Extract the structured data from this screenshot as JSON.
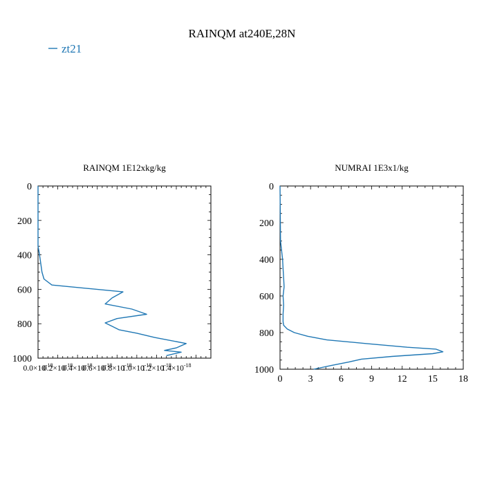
{
  "figure": {
    "title": "RAINQM at240E,28N",
    "legend": [
      {
        "label": "zt21",
        "color": "#1f77b4"
      }
    ]
  },
  "chart_data": [
    {
      "type": "line",
      "title": "RAINQM  1E12xkg/kg",
      "xlim": [
        0.0,
        1.75e-18
      ],
      "ylim": [
        1000,
        0
      ],
      "y_inverted": true,
      "xticks": [
        0.0,
        2e-19,
        4e-19,
        6e-19,
        8e-19,
        1e-18,
        1.2e-18,
        1.4e-18
      ],
      "xtick_labels": [
        "0.0×10^-18",
        "0.2×10^-18",
        "0.4×10^-18",
        "0.6×10^-18",
        "0.8×10^-18",
        "1.0×10^-18",
        "1.2×10^-18",
        "1.4×10^-18"
      ],
      "yticks": [
        0,
        200,
        400,
        600,
        800,
        1000
      ],
      "ytick_labels": [
        "0",
        "200",
        "400",
        "600",
        "800",
        "1000"
      ],
      "series": [
        {
          "name": "zt21",
          "color": "#1f77b4",
          "x": [
            0,
            0,
            1e-20,
            2e-20,
            3e-20,
            4e-20,
            6e-20,
            1.4e-19,
            8.6e-19,
            7.5e-19,
            6.8e-19,
            9.5e-19,
            1.1e-18,
            8e-19,
            6.8e-19,
            7.5e-19,
            8.2e-19,
            1e-18,
            1.18e-18,
            1.5e-18,
            1.4e-18,
            1.28e-18,
            1.45e-18,
            1.3e-18
          ],
          "y": [
            0,
            350,
            380,
            420,
            460,
            500,
            540,
            575,
            615,
            650,
            685,
            715,
            745,
            770,
            795,
            815,
            835,
            855,
            880,
            915,
            940,
            955,
            965,
            985
          ]
        }
      ]
    },
    {
      "type": "line",
      "title": "NUMRAI  1E3x1/kg",
      "xlim": [
        0,
        18
      ],
      "ylim": [
        1000,
        0
      ],
      "y_inverted": true,
      "xticks": [
        0,
        3,
        6,
        9,
        12,
        15,
        18
      ],
      "xtick_labels": [
        "0",
        "3",
        "6",
        "9",
        "12",
        "15",
        "18"
      ],
      "yticks": [
        0,
        200,
        400,
        600,
        800,
        1000
      ],
      "ytick_labels": [
        "0",
        "200",
        "400",
        "600",
        "800",
        "1000"
      ],
      "series": [
        {
          "name": "zt21",
          "color": "#1f77b4",
          "x": [
            0,
            0.05,
            0.15,
            0.25,
            0.3,
            0.35,
            0.4,
            0.3,
            0.35,
            0.3,
            0.3,
            0.35,
            0.7,
            1.4,
            2.7,
            4.6,
            8.5,
            12.5,
            15.3,
            16.0,
            15.0,
            11.0,
            8.0,
            6.8,
            5.0,
            3.3
          ],
          "y": [
            0,
            300,
            350,
            400,
            450,
            500,
            550,
            600,
            650,
            700,
            740,
            760,
            780,
            800,
            820,
            840,
            860,
            880,
            890,
            905,
            915,
            930,
            945,
            960,
            980,
            1000
          ]
        }
      ]
    }
  ]
}
